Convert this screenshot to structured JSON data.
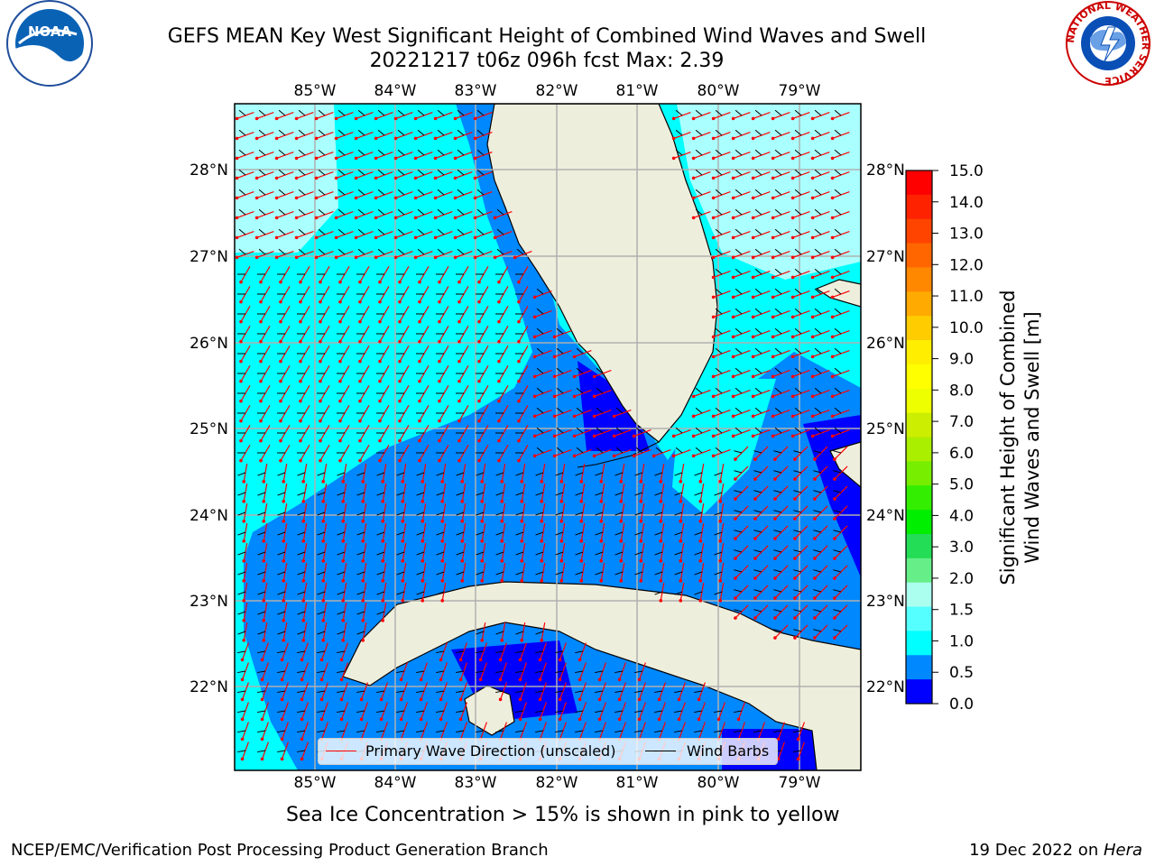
{
  "header": {
    "title_line1": "GEFS MEAN Key West Significant Height of Combined Wind Waves and Swell",
    "title_line2": "20221217 t06z 096h fcst   Max: 2.39"
  },
  "logos": {
    "noaa_text": "NOAA",
    "nws_text": "NATIONAL WEATHER SERVICE"
  },
  "map": {
    "lon_labels": [
      "85°W",
      "84°W",
      "83°W",
      "82°W",
      "81°W",
      "80°W",
      "79°W"
    ],
    "lat_labels": [
      "28°N",
      "27°N",
      "26°N",
      "25°N",
      "24°N",
      "23°N",
      "22°N"
    ],
    "legend": {
      "wave_direction": "Primary Wave Direction (unscaled)",
      "wind_barbs": "Wind Barbs"
    },
    "colors": {
      "land": "#eeeedd",
      "wave_color": "#ff0000",
      "barb_color": "#000000",
      "gridline": "#b0b0b0"
    }
  },
  "colorbar": {
    "label_line1": "Significant Height of Combined",
    "label_line2": "Wind Waves and Swell [m]",
    "ticks": [
      "15.0",
      "14.0",
      "13.0",
      "12.0",
      "11.0",
      "10.0",
      "9.0",
      "8.0",
      "7.0",
      "6.0",
      "5.0",
      "4.0",
      "3.0",
      "2.0",
      "1.5",
      "1.0",
      "0.5",
      "0.0"
    ],
    "colors_top_to_bottom": [
      "#ff0000",
      "#ff2200",
      "#ff4400",
      "#ff6600",
      "#ff8800",
      "#ffaa00",
      "#ffcc00",
      "#ffee00",
      "#ffff00",
      "#eeff00",
      "#ccee00",
      "#aaee00",
      "#77ee00",
      "#33ee00",
      "#00ee00",
      "#22dd55",
      "#66ee88",
      "#aaffee",
      "#55ffff",
      "#00ffff",
      "#0088ff",
      "#0000ff"
    ]
  },
  "note": "Sea Ice Concentration > 15% is shown in pink to yellow",
  "footer": {
    "left": "NCEP/EMC/Verification Post Processing Product Generation Branch",
    "right_prefix": "19 Dec 2022 on ",
    "right_host": "Hera"
  }
}
